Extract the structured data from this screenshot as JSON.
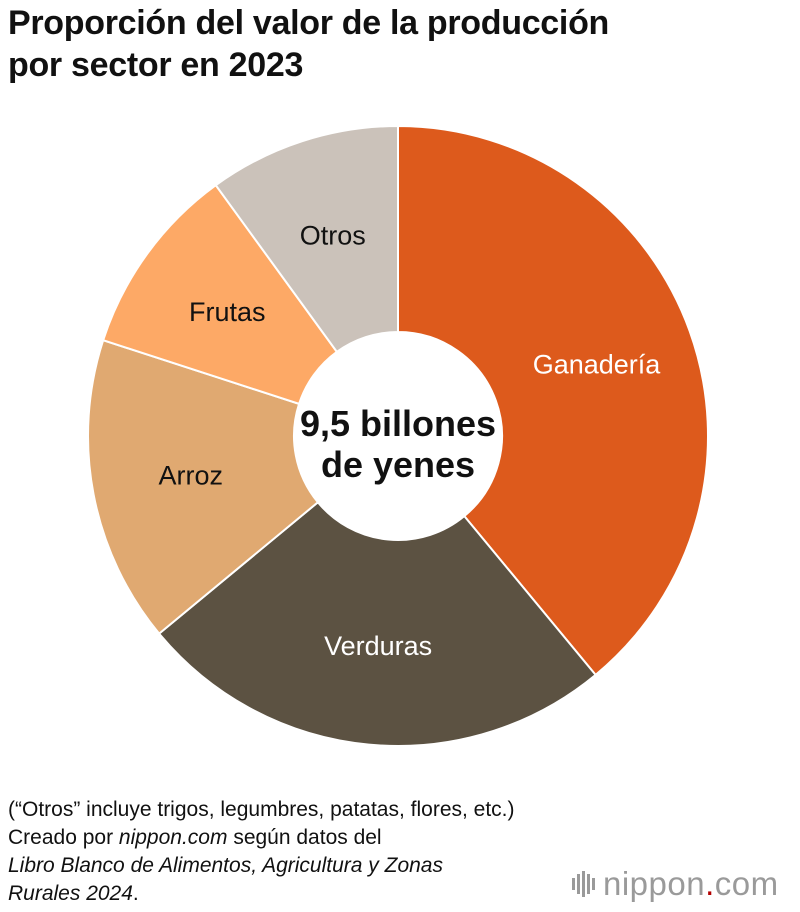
{
  "title_lines": [
    "Proporción del valor de la producción",
    "por sector en 2023"
  ],
  "chart_data": {
    "type": "pie",
    "title": "Proporción del valor de la producción por sector en 2023",
    "center_label": [
      "9,5 billones",
      "de yenes"
    ],
    "categories": [
      "Ganadería",
      "Verduras",
      "Arroz",
      "Frutas",
      "Otros"
    ],
    "values": [
      39,
      25,
      16,
      10,
      10
    ],
    "colors": [
      "#dd5a1c",
      "#5c5242",
      "#e0a971",
      "#fda966",
      "#cbc2ba"
    ],
    "label_colors": [
      "#ffffff",
      "#ffffff",
      "#111111",
      "#111111",
      "#111111"
    ],
    "chart_style": "donut",
    "start": "top, clockwise",
    "legend": "none"
  },
  "notes": {
    "line1": "(“Otros” incluye trigos, legumbres, patatas, flores, etc.)",
    "line2_pre": "Creado por ",
    "line2_em": "nippon.com",
    "line2_post": " según datos del",
    "line3_em": "Libro Blanco de Alimentos, Agricultura y Zonas",
    "line4_em": "Rurales 2024",
    "line4_post": "."
  },
  "logo": {
    "main": "nippon",
    "dot": ".",
    "suffix": "com"
  }
}
